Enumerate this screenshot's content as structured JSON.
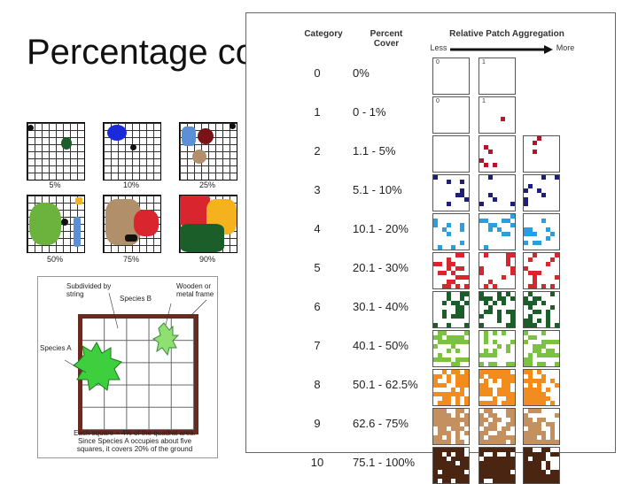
{
  "title": "Percentage cover",
  "grid_labels": [
    "5%",
    "10%",
    "25%",
    "50%",
    "75%",
    "90%"
  ],
  "quadrat": {
    "label_subdivided": "Subdivided by string",
    "label_species_b": "Species B",
    "label_frame": "Wooden or metal frame",
    "label_species_a": "Species A",
    "caption": "Each square = 4% of the quadrat area. Since Species A occupies about five squares, it covers 20% of the ground"
  },
  "table": {
    "header_category": "Category",
    "header_percent": "Percent Cover",
    "header_aggregation": "Relative Patch Aggregation",
    "less_label": "Less",
    "more_label": "More",
    "box_labels": [
      "0",
      "1"
    ],
    "rows": [
      {
        "category": "0",
        "percent": "0%",
        "color": "#ffffff"
      },
      {
        "category": "1",
        "percent": "0 - 1%",
        "color": "#c0162a"
      },
      {
        "category": "2",
        "percent": "1.1 - 5%",
        "color": "#b0172a"
      },
      {
        "category": "3",
        "percent": "5.1 - 10%",
        "color": "#1d1f7a"
      },
      {
        "category": "4",
        "percent": "10.1 - 20%",
        "color": "#2b9ee0"
      },
      {
        "category": "5",
        "percent": "20.1 - 30%",
        "color": "#d9262e"
      },
      {
        "category": "6",
        "percent": "30.1 - 40%",
        "color": "#1c5e2a"
      },
      {
        "category": "7",
        "percent": "40.1 - 50%",
        "color": "#7cc242"
      },
      {
        "category": "8",
        "percent": "50.1 - 62.5%",
        "color": "#f28c1e"
      },
      {
        "category": "9",
        "percent": "62.6 - 75%",
        "color": "#c49060"
      },
      {
        "category": "10",
        "percent": "75.1 - 100%",
        "color": "#4a2511"
      }
    ]
  }
}
